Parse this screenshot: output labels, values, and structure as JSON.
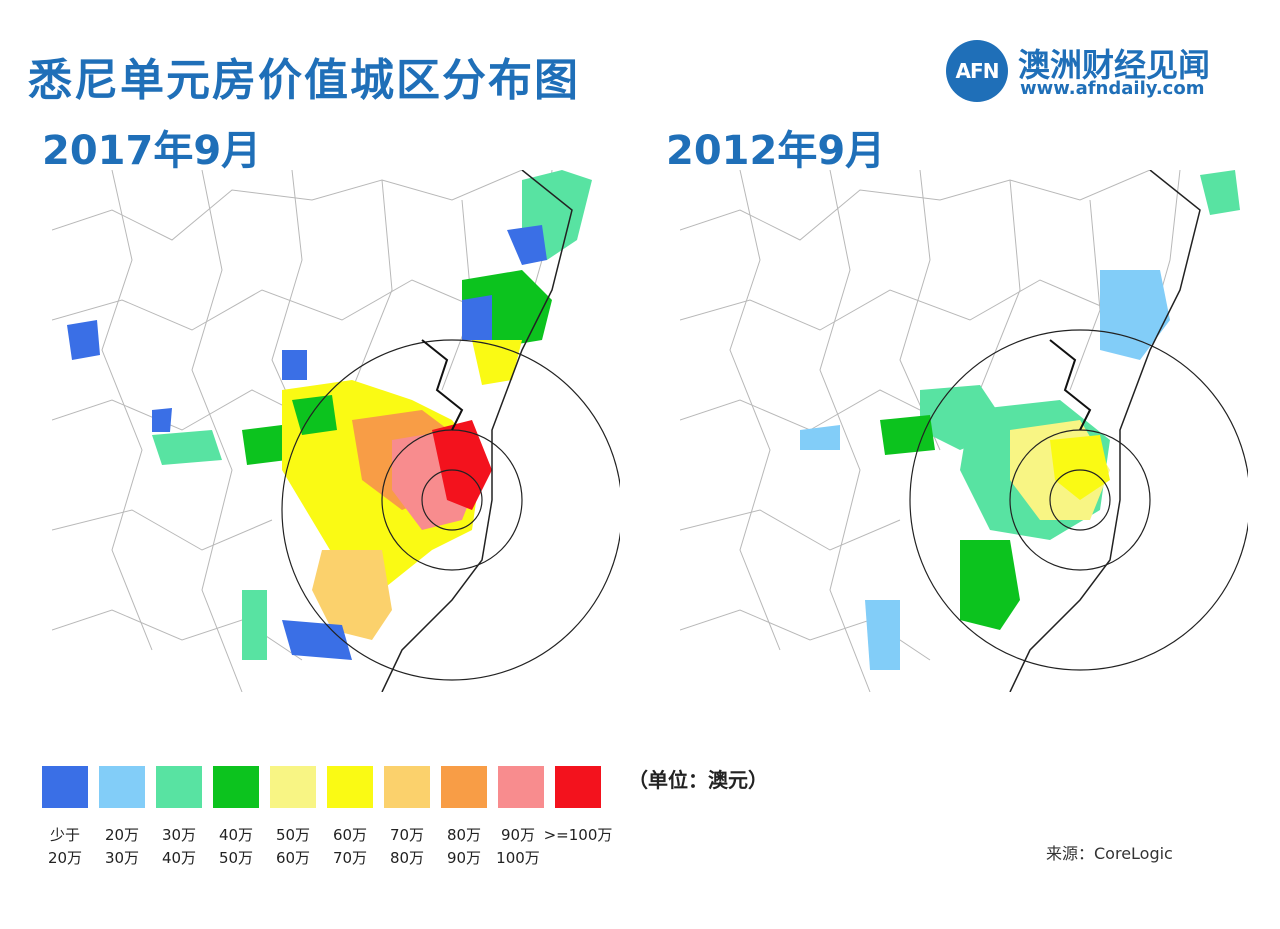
{
  "title": "悉尼单元房价值城区分布图",
  "logo": {
    "badge": "AFN",
    "name": "澳洲财经见闻",
    "url": "www.afndaily.com"
  },
  "maps": [
    {
      "label": "2017年9月"
    },
    {
      "label": "2012年9月"
    }
  ],
  "legend": [
    {
      "top": "少于",
      "bottom": "20万",
      "color": "#3a6fe6"
    },
    {
      "top": "20万",
      "bottom": "30万",
      "color": "#82cdf8"
    },
    {
      "top": "30万",
      "bottom": "40万",
      "color": "#58e3a2"
    },
    {
      "top": "40万",
      "bottom": "50万",
      "color": "#0cc31e"
    },
    {
      "top": "50万",
      "bottom": "60万",
      "color": "#f8f584"
    },
    {
      "top": "60万",
      "bottom": "70万",
      "color": "#fafa14"
    },
    {
      "top": "70万",
      "bottom": "80万",
      "color": "#fbd16c"
    },
    {
      "top": "80万",
      "bottom": "90万",
      "color": "#f89d46"
    },
    {
      "top": "90万",
      "bottom": "100万",
      "color": "#f88c8e"
    },
    {
      "top": ">=100万",
      "bottom": "",
      "color": "#f3121d"
    }
  ],
  "unit": "（单位：澳元）",
  "source": "来源：CoreLogic"
}
